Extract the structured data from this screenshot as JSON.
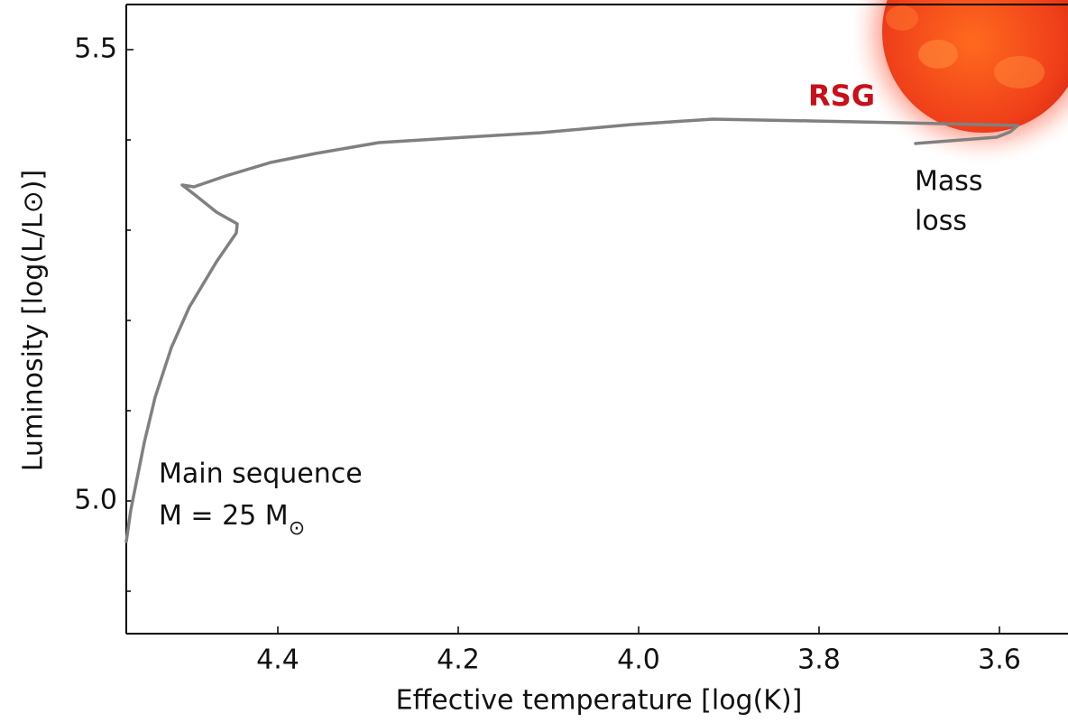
{
  "chart_data": {
    "type": "line",
    "xlabel": "Effective temperature [log(K)]",
    "ylabel": "Luminosity [log(L/L⊙)]",
    "xlim": [
      4.568,
      3.524
    ],
    "ylim": [
      4.853,
      5.55
    ],
    "xticks": [
      4.4,
      4.2,
      {
        "value": 4.0,
        "label": "4.0"
      },
      3.8,
      3.6
    ],
    "yticks": [
      {
        "value": 5.0,
        "label": "5.0"
      },
      5.5
    ],
    "yminorticks": [
      4.9,
      5.1,
      5.2,
      5.3,
      5.4
    ],
    "color": "#808080",
    "x": [
      4.568,
      4.563,
      4.556,
      4.548,
      4.536,
      4.518,
      4.498,
      4.468,
      4.446,
      4.445,
      4.468,
      4.493,
      4.506,
      4.493,
      4.458,
      4.408,
      4.358,
      4.288,
      4.208,
      4.108,
      4.008,
      3.918,
      3.808,
      3.708,
      3.58,
      3.588,
      3.603,
      3.693
    ],
    "values": [
      4.955,
      4.99,
      5.025,
      5.065,
      5.115,
      5.17,
      5.215,
      5.265,
      5.297,
      5.307,
      5.32,
      5.34,
      5.35,
      5.348,
      5.36,
      5.375,
      5.385,
      5.397,
      5.402,
      5.408,
      5.417,
      5.423,
      5.421,
      5.419,
      5.416,
      5.409,
      5.403,
      5.396
    ],
    "annotations": {
      "rsg": "RSG",
      "mass_loss": [
        "Mass",
        "loss"
      ],
      "main_sequence": "Main sequence",
      "mass": {
        "text": "M = 25 M",
        "sub": "⊙"
      }
    }
  }
}
